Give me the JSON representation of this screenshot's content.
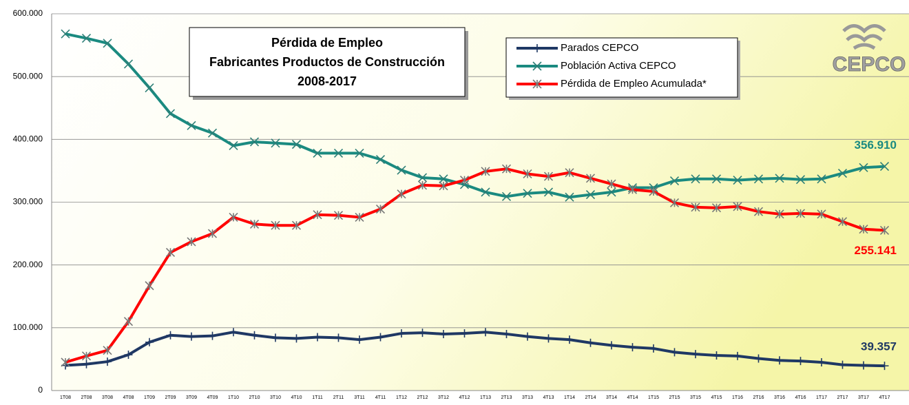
{
  "chart_data": {
    "type": "line",
    "title": [
      "Pérdida de Empleo",
      "Fabricantes Productos de Construcción",
      "2008-2017"
    ],
    "logo": "CEPCO",
    "categories": [
      "1T08",
      "2T08",
      "3T08",
      "4T08",
      "1T09",
      "2T09",
      "3T09",
      "4T09",
      "1T10",
      "2T10",
      "3T10",
      "4T10",
      "1T11",
      "2T11",
      "3T11",
      "4T11",
      "1T12",
      "2T12",
      "3T12",
      "4T12",
      "1T13",
      "2T13",
      "3T13",
      "4T13",
      "1T14",
      "2T14",
      "3T14",
      "4T14",
      "1T15",
      "2T15",
      "3T15",
      "4T15",
      "1T16",
      "2T16",
      "3T16",
      "4T16",
      "1T17",
      "2T17",
      "3T17",
      "4T17"
    ],
    "ylim": [
      0,
      600000
    ],
    "yticks": [
      0,
      {
        "value": 100000,
        "label": "100.000"
      },
      {
        "value": 200000,
        "label": "200.000"
      },
      {
        "value": 300000,
        "label": "300.000"
      },
      {
        "value": 400000,
        "label": "400.000"
      },
      {
        "value": 500000,
        "label": "500.000"
      },
      {
        "value": 600000,
        "label": "600.000"
      }
    ],
    "grid": true,
    "legend": "top-right",
    "series": [
      {
        "name": "Parados CEPCO",
        "color": "#1f3864",
        "marker": "plus",
        "values": [
          40000,
          42000,
          46000,
          57000,
          77000,
          88000,
          86000,
          87000,
          93000,
          88000,
          84000,
          83000,
          85000,
          84000,
          81000,
          85000,
          91000,
          92000,
          90000,
          91000,
          93000,
          90000,
          86000,
          83000,
          81000,
          76000,
          72000,
          69000,
          67000,
          61000,
          58000,
          56000,
          55000,
          51000,
          48000,
          47000,
          45000,
          41000,
          40000,
          39357
        ],
        "value_labels": [
          null,
          null,
          null,
          null,
          null,
          null,
          null,
          null,
          null,
          null,
          null,
          null,
          null,
          null,
          null,
          null,
          null,
          null,
          null,
          null,
          null,
          null,
          null,
          null,
          null,
          null,
          null,
          null,
          null,
          null,
          null,
          null,
          null,
          null,
          null,
          null,
          null,
          null,
          null,
          "39.357"
        ]
      },
      {
        "name": "Población Activa CEPCO",
        "color": "#1a8a80",
        "marker": "cross",
        "values": [
          568000,
          561000,
          553000,
          520000,
          482000,
          441000,
          422000,
          410000,
          390000,
          396000,
          394000,
          392000,
          378000,
          378000,
          378000,
          368000,
          351000,
          339000,
          337000,
          328000,
          316000,
          309000,
          314000,
          316000,
          308000,
          312000,
          316000,
          323000,
          323000,
          334000,
          337000,
          337000,
          335000,
          337000,
          338000,
          336000,
          337000,
          346000,
          355000,
          356910
        ],
        "value_labels": [
          null,
          null,
          null,
          null,
          null,
          null,
          null,
          null,
          null,
          null,
          null,
          null,
          null,
          null,
          null,
          null,
          null,
          null,
          null,
          null,
          null,
          null,
          null,
          null,
          null,
          null,
          null,
          null,
          null,
          null,
          null,
          null,
          null,
          null,
          null,
          null,
          null,
          null,
          null,
          "356.910"
        ]
      },
      {
        "name": "Pérdida de Empleo Acumulada*",
        "color": "#ff0000",
        "marker": "star",
        "values": [
          45000,
          55000,
          64000,
          110000,
          167000,
          220000,
          237000,
          250000,
          276000,
          265000,
          263000,
          263000,
          280000,
          279000,
          276000,
          289000,
          313000,
          327000,
          326000,
          335000,
          349000,
          353000,
          345000,
          341000,
          347000,
          338000,
          329000,
          320000,
          317000,
          299000,
          292000,
          291000,
          293000,
          285000,
          281000,
          282000,
          281000,
          269000,
          257000,
          255141
        ],
        "value_labels": [
          null,
          null,
          null,
          null,
          null,
          null,
          null,
          null,
          null,
          null,
          null,
          null,
          null,
          null,
          null,
          null,
          null,
          null,
          null,
          null,
          null,
          null,
          null,
          null,
          null,
          null,
          null,
          null,
          null,
          null,
          null,
          null,
          null,
          null,
          null,
          null,
          null,
          null,
          null,
          "255.141"
        ]
      }
    ]
  }
}
